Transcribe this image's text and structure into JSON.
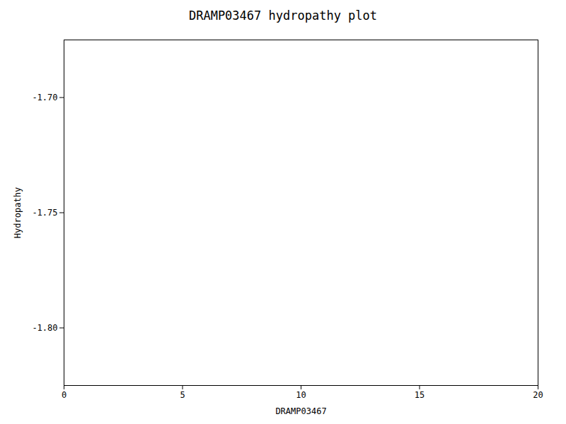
{
  "chart_data": {
    "type": "line",
    "title": "DRAMP03467 hydropathy plot",
    "xlabel": "DRAMP03467",
    "ylabel": "Hydropathy",
    "xlim": [
      0,
      20
    ],
    "ylim": [
      -1.825,
      -1.675
    ],
    "xticks": [
      0,
      5,
      10,
      15,
      20
    ],
    "yticks": [
      {
        "value": -1.8,
        "label": "-1.80"
      },
      -1.75,
      {
        "value": -1.7,
        "label": "-1.70"
      }
    ],
    "grid": false
  }
}
